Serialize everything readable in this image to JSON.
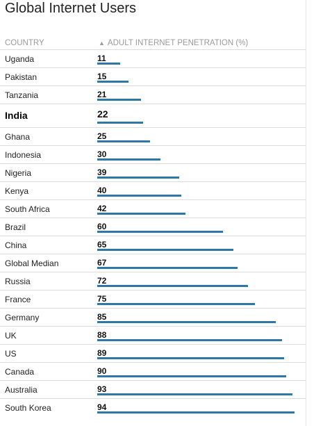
{
  "chart_data": {
    "type": "bar",
    "title": "Global Internet Users",
    "category_header": "COUNTRY",
    "value_header": "ADULT INTERNET PENETRATION (%)",
    "sort_indicator": "▲",
    "categories": [
      "Uganda",
      "Pakistan",
      "Tanzania",
      "India",
      "Ghana",
      "Indonesia",
      "Nigeria",
      "Kenya",
      "South Africa",
      "Brazil",
      "China",
      "Global Median",
      "Russia",
      "France",
      "Germany",
      "UK",
      "US",
      "Canada",
      "Australia",
      "South Korea"
    ],
    "values": [
      11,
      15,
      21,
      22,
      25,
      30,
      39,
      40,
      42,
      60,
      65,
      67,
      72,
      75,
      85,
      88,
      89,
      90,
      93,
      94
    ],
    "highlight": "India",
    "bar_color": "#2e78a8",
    "xlim": [
      0,
      100
    ]
  }
}
